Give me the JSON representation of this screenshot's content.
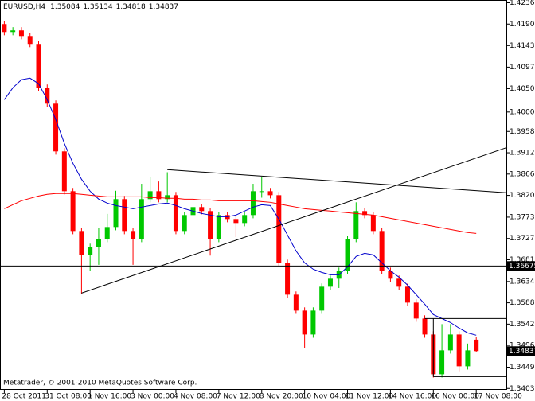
{
  "chart_data": {
    "type": "candlestick",
    "title": "EURUSD,H4",
    "footer": "Metatrader, © 2001-2010 MetaQuotes Software Corp.",
    "up_color": "#00c800",
    "down_color": "#ff0000",
    "candles": [
      [
        1.419,
        1.4197,
        1.41658,
        1.41728
      ],
      [
        1.41728,
        1.41833,
        1.41658,
        1.41763
      ],
      [
        1.41763,
        1.41833,
        1.41572,
        1.41642
      ],
      [
        1.41642,
        1.41712,
        1.41401,
        1.41471
      ],
      [
        1.41471,
        1.41541,
        1.40455,
        1.40525
      ],
      [
        1.40525,
        1.40595,
        1.40111,
        1.40181
      ],
      [
        1.40181,
        1.40251,
        1.3908,
        1.3915
      ],
      [
        1.3915,
        1.3922,
        1.3822,
        1.3829
      ],
      [
        1.3829,
        1.3836,
        1.37361,
        1.37431
      ],
      [
        1.37431,
        1.37501,
        1.3608,
        1.36915
      ],
      [
        1.36915,
        1.37157,
        1.3657,
        1.37087
      ],
      [
        1.37087,
        1.375,
        1.367,
        1.37259
      ],
      [
        1.37259,
        1.378,
        1.37189,
        1.37517
      ],
      [
        1.37517,
        1.383,
        1.37447,
        1.38119
      ],
      [
        1.38119,
        1.38189,
        1.37361,
        1.37431
      ],
      [
        1.37431,
        1.37501,
        1.367,
        1.37259
      ],
      [
        1.37259,
        1.3845,
        1.37189,
        1.38119
      ],
      [
        1.38119,
        1.386,
        1.38049,
        1.3829
      ],
      [
        1.3829,
        1.385,
        1.38049,
        1.38119
      ],
      [
        1.38119,
        1.387,
        1.38049,
        1.38204
      ],
      [
        1.38204,
        1.38274,
        1.37361,
        1.37431
      ],
      [
        1.37431,
        1.37845,
        1.37361,
        1.37775
      ],
      [
        1.37775,
        1.3829,
        1.37705,
        1.37947
      ],
      [
        1.37947,
        1.38017,
        1.37791,
        1.37861
      ],
      [
        1.37861,
        1.37931,
        1.369,
        1.37259
      ],
      [
        1.37259,
        1.37845,
        1.37189,
        1.37775
      ],
      [
        1.37775,
        1.37845,
        1.37619,
        1.37689
      ],
      [
        1.37689,
        1.37759,
        1.373,
        1.37603
      ],
      [
        1.37603,
        1.37845,
        1.37533,
        1.37775
      ],
      [
        1.37775,
        1.3845,
        1.37705,
        1.3829
      ],
      [
        1.3829,
        1.386,
        1.3815,
        1.3829
      ],
      [
        1.3829,
        1.3836,
        1.38134,
        1.38204
      ],
      [
        1.38204,
        1.38274,
        1.36673,
        1.36743
      ],
      [
        1.36743,
        1.36813,
        1.35986,
        1.36056
      ],
      [
        1.36056,
        1.36126,
        1.35642,
        1.35712
      ],
      [
        1.35712,
        1.35782,
        1.349,
        1.35196
      ],
      [
        1.35196,
        1.35782,
        1.35126,
        1.35712
      ],
      [
        1.35712,
        1.36298,
        1.35642,
        1.36228
      ],
      [
        1.36228,
        1.3647,
        1.36158,
        1.364
      ],
      [
        1.364,
        1.36641,
        1.362,
        1.36571
      ],
      [
        1.36571,
        1.37329,
        1.36501,
        1.37259
      ],
      [
        1.37259,
        1.3805,
        1.37189,
        1.37861
      ],
      [
        1.37861,
        1.37931,
        1.37705,
        1.37775
      ],
      [
        1.37775,
        1.37845,
        1.37361,
        1.37431
      ],
      [
        1.37431,
        1.37501,
        1.36501,
        1.36571
      ],
      [
        1.36571,
        1.36641,
        1.3633,
        1.364
      ],
      [
        1.364,
        1.3647,
        1.36158,
        1.36228
      ],
      [
        1.36228,
        1.36298,
        1.35814,
        1.35884
      ],
      [
        1.35884,
        1.35954,
        1.3547,
        1.3554
      ],
      [
        1.3554,
        1.3561,
        1.35126,
        1.35196
      ],
      [
        1.35196,
        1.35266,
        1.34267,
        1.34337
      ],
      [
        1.34337,
        1.3542,
        1.34267,
        1.34853
      ],
      [
        1.34853,
        1.3542,
        1.34783,
        1.35196
      ],
      [
        1.35196,
        1.35266,
        1.344,
        1.34509
      ],
      [
        1.34509,
        1.35,
        1.34439,
        1.34853
      ],
      [
        1.35084,
        1.35134,
        1.34818,
        1.34837
      ]
    ],
    "series": [
      {
        "color": "#0000cc",
        "values": [
          1.40267,
          1.40525,
          1.40697,
          1.40731,
          1.40611,
          1.40267,
          1.39838,
          1.39322,
          1.38892,
          1.38548,
          1.3829,
          1.38119,
          1.38033,
          1.37981,
          1.37947,
          1.37912,
          1.37947,
          1.37981,
          1.38015,
          1.38033,
          1.37981,
          1.37912,
          1.37861,
          1.37809,
          1.37775,
          1.3774,
          1.3774,
          1.37775,
          1.37861,
          1.37947,
          1.37998,
          1.37981,
          1.37689,
          1.37345,
          1.37001,
          1.36743,
          1.36606,
          1.36537,
          1.36486,
          1.36486,
          1.36657,
          1.36881,
          1.36949,
          1.36915,
          1.36743,
          1.36571,
          1.36434,
          1.36262,
          1.36056,
          1.3585,
          1.35626,
          1.3554,
          1.35454,
          1.35334,
          1.35231,
          1.3518
        ]
      },
      {
        "color": "#ff0000",
        "values": [
          1.37912,
          1.37998,
          1.38084,
          1.38136,
          1.38187,
          1.38222,
          1.38239,
          1.38239,
          1.38239,
          1.38222,
          1.38204,
          1.38187,
          1.3817,
          1.3817,
          1.3817,
          1.3817,
          1.3817,
          1.38153,
          1.38153,
          1.38136,
          1.38136,
          1.38118,
          1.38118,
          1.38101,
          1.38101,
          1.38084,
          1.38084,
          1.38084,
          1.38084,
          1.38084,
          1.38067,
          1.3805,
          1.38015,
          1.37981,
          1.37947,
          1.37912,
          1.37895,
          1.37878,
          1.37861,
          1.37843,
          1.37826,
          1.37809,
          1.37792,
          1.37775,
          1.3774,
          1.37706,
          1.37671,
          1.37637,
          1.37603,
          1.37568,
          1.37534,
          1.375,
          1.37465,
          1.37431,
          1.37397,
          1.37379
        ]
      }
    ],
    "lines": [
      {
        "x": [
          9,
          58.6
        ],
        "y": [
          1.3609,
          1.39236
        ]
      },
      {
        "x": [
          19,
          58.6
        ],
        "y": [
          1.38755,
          1.38256
        ]
      },
      {
        "x": [
          -0.5,
          58.6
        ],
        "y": [
          1.36675,
          1.36675
        ]
      },
      {
        "x": [
          49,
          58.6
        ],
        "y": [
          1.3554,
          1.3554
        ]
      },
      {
        "x": [
          50,
          58.6
        ],
        "y": [
          1.34285,
          1.34285
        ]
      },
      {
        "x": [
          50,
          50
        ],
        "y": [
          1.3554,
          1.34285
        ]
      }
    ],
    "level_label": 1.36675,
    "xlim": [
      -0.5,
      58.6
    ],
    "ylim": [
      1.34,
      1.4242
    ],
    "xticks": [
      {
        "value": 0,
        "label": "28 Oct 2011"
      },
      {
        "value": 5,
        "label": "31 Oct 08:00"
      },
      {
        "value": 10,
        "label": "1 Nov 16:00"
      },
      {
        "value": 15,
        "label": "3 Nov 00:00"
      },
      {
        "value": 20,
        "label": "4 Nov 08:00"
      },
      {
        "value": 25,
        "label": "7 Nov 12:00"
      },
      {
        "value": 30,
        "label": "8 Nov 20:00"
      },
      {
        "value": 35,
        "label": "10 Nov 04:00"
      },
      {
        "value": 40,
        "label": "11 Nov 12:00"
      },
      {
        "value": 45,
        "label": "14 Nov 16:00"
      },
      {
        "value": 50,
        "label": "16 Nov 00:00"
      },
      {
        "value": 55,
        "label": "17 Nov 08:00"
      }
    ],
    "yticks": [
      {
        "value": 1.4236,
        "label": "1.42360"
      },
      {
        "value": 1.419,
        "label": "1.41900"
      },
      1.41435,
      {
        "value": 1.4097,
        "label": "1.40970"
      },
      1.40505,
      {
        "value": 1.4,
        "label": "1.40000"
      },
      {
        "value": 1.3958,
        "label": "1.39580"
      },
      {
        "value": 1.3912,
        "label": "1.39120"
      },
      {
        "value": 1.3866,
        "label": "1.38660"
      },
      {
        "value": 1.382,
        "label": "1.38200"
      },
      {
        "value": 1.3773,
        "label": "1.37730"
      },
      {
        "value": 1.3727,
        "label": "1.37270"
      },
      {
        "value": 1.3681,
        "label": "1.36810"
      },
      {
        "value": 1.3634,
        "label": "1.36340"
      },
      {
        "value": 1.3588,
        "label": "1.35880"
      },
      {
        "value": 1.3542,
        "label": "1.35420"
      },
      {
        "value": 1.3496,
        "label": "1.34960"
      },
      {
        "value": 1.3449,
        "label": "1.34490"
      },
      {
        "value": 1.3403,
        "label": "1.34030"
      }
    ]
  }
}
